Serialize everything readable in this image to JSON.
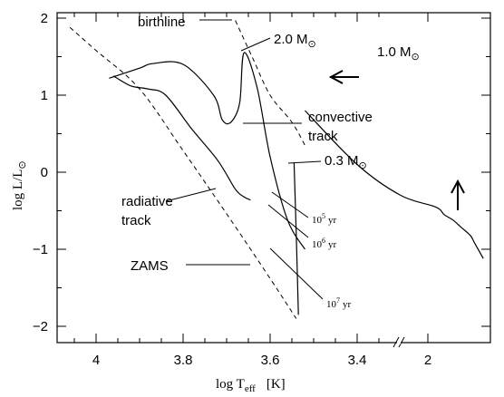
{
  "chart_data": {
    "type": "line",
    "title": "",
    "xlabel": "log T_eff [K]",
    "ylabel": "log L/L⊙",
    "x_inverted": true,
    "xlim": [
      4.09,
      3.18
    ],
    "ylim": [
      -2.22,
      2.1
    ],
    "x_ticks": [
      {
        "value": 4.0,
        "label": "4"
      },
      {
        "value": 3.8,
        "label": "3.8"
      },
      {
        "value": 3.6,
        "label": "3.6"
      },
      {
        "value": 3.4,
        "label": "3.4"
      }
    ],
    "x_break_label": "2",
    "y_ticks": [
      {
        "value": 2,
        "label": "2"
      },
      {
        "value": 1,
        "label": "1"
      },
      {
        "value": 0,
        "label": "0"
      },
      {
        "value": -1,
        "label": "−1"
      },
      {
        "value": -2,
        "label": "−2"
      }
    ],
    "series": [
      {
        "name": "ZAMS",
        "style": "dashed",
        "x": [
          4.06,
          4.0,
          3.9,
          3.8,
          3.7,
          3.6,
          3.54
        ],
        "y": [
          1.88,
          1.58,
          1.08,
          0.28,
          -0.54,
          -1.38,
          -1.9
        ]
      },
      {
        "name": "birthline",
        "style": "dashed",
        "x": [
          3.68,
          3.64,
          3.6,
          3.55,
          3.52
        ],
        "y": [
          1.97,
          1.48,
          1.0,
          0.65,
          0.35
        ]
      },
      {
        "name": "2.0 M⊙",
        "style": "solid",
        "x": [
          3.97,
          3.9,
          3.87,
          3.8,
          3.73,
          3.71,
          3.69,
          3.67,
          3.66,
          3.63,
          3.6,
          3.56,
          3.52
        ],
        "y": [
          1.22,
          1.35,
          1.41,
          1.4,
          1.0,
          0.68,
          0.65,
          0.9,
          1.55,
          1.1,
          0.2,
          -0.62,
          -1.0
        ]
      },
      {
        "name": "radiative track (2.0 M⊙)",
        "style": "solid",
        "x": [
          3.96,
          3.92,
          3.88,
          3.84,
          3.78,
          3.72,
          3.68,
          3.66,
          3.645
        ],
        "y": [
          1.25,
          1.12,
          1.08,
          1.0,
          0.56,
          0.15,
          -0.22,
          -0.32,
          -0.36
        ]
      },
      {
        "name": "1.0 M⊙",
        "style": "solid",
        "x": [
          3.52,
          3.4,
          3.3,
          3.22,
          3.2,
          3.18,
          3.16,
          3.14,
          3.13,
          3.12,
          3.11
        ],
        "y": [
          0.8,
          0.1,
          -0.3,
          -0.45,
          -0.55,
          -0.62,
          -0.72,
          -0.82,
          -0.92,
          -1.02,
          -1.12
        ]
      },
      {
        "name": "0.3 M⊙",
        "style": "solid",
        "x": [
          3.545,
          3.54,
          3.535
        ],
        "y": [
          0.12,
          -0.8,
          -1.85
        ]
      }
    ],
    "annotations": [
      {
        "text": "birthline",
        "x": 3.83,
        "y": 1.95
      },
      {
        "text": "2.0 M⊙",
        "x": 3.6,
        "y": 1.72
      },
      {
        "text": "1.0 M⊙",
        "x": 3.34,
        "y": 1.52
      },
      {
        "text": "convective track",
        "x": 3.5,
        "y": 0.7
      },
      {
        "text": "0.3 M⊙",
        "x": 3.5,
        "y": 0.13
      },
      {
        "text": "radiative track",
        "x": 3.9,
        "y": -0.5
      },
      {
        "text": "10⁵ yr",
        "x": 3.48,
        "y": -0.6
      },
      {
        "text": "10⁶ yr",
        "x": 3.48,
        "y": -0.95
      },
      {
        "text": "10⁷ yr",
        "x": 3.48,
        "y": -1.75
      },
      {
        "text": "ZAMS",
        "x": 3.95,
        "y": -1.25
      }
    ],
    "grid": false,
    "legend": "none"
  },
  "labels": {
    "x_axis_main": "log T",
    "x_axis_sub": "eff",
    "x_axis_unit": "[K]",
    "y_axis_main": "log  L/L",
    "y_axis_sun": "⊙",
    "birthline": "birthline",
    "m20": "2.0 M",
    "m10": "1.0 M",
    "m03": "0.3 M",
    "sun": "⊙",
    "convective_1": "convective",
    "convective_2": "track",
    "radiative_1": "radiative",
    "radiative_2": "track",
    "zams": "ZAMS",
    "iso_base": "10",
    "iso5_exp": "5",
    "iso6_exp": "6",
    "iso7_exp": "7",
    "iso_unit": "yr",
    "break_label": "2",
    "arrow_left": "⟵",
    "arrow_up": "↑"
  }
}
